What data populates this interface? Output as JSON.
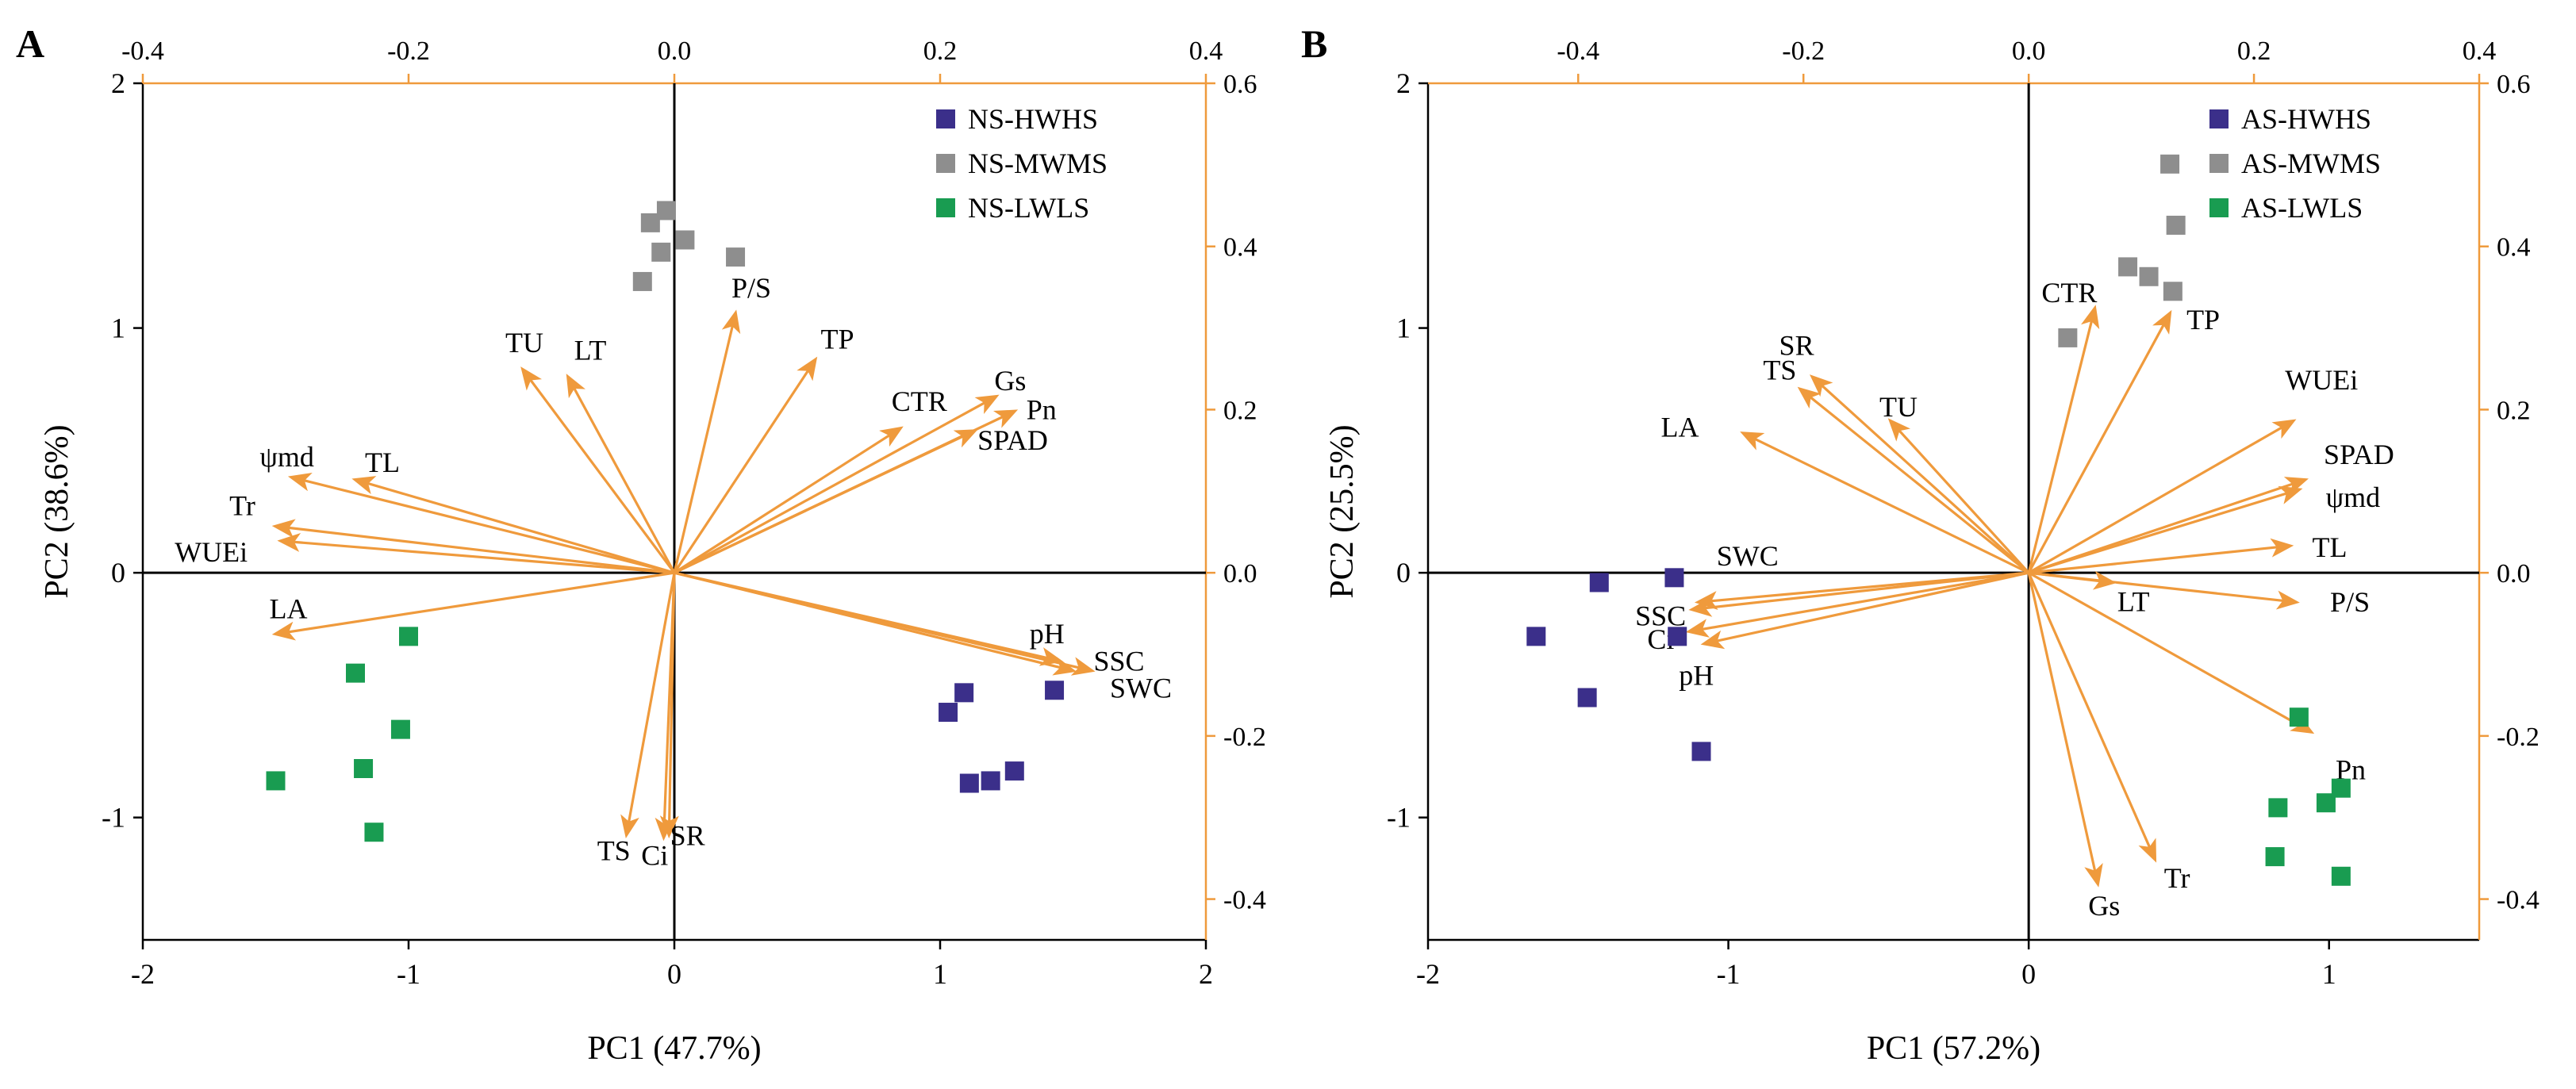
{
  "chart_data": [
    {
      "type": "biplot",
      "panel": "A",
      "xlabel": "PC1 (47.7%)",
      "ylabel": "PC2 (38.6%)",
      "xlim": [
        -2,
        2
      ],
      "ylim": [
        -1.5,
        2
      ],
      "x_ticks": [
        "-2",
        "-1",
        "0",
        "1",
        "2"
      ],
      "y_ticks": [
        "-1",
        "0",
        "1",
        "2"
      ],
      "top_ticks": [
        "-0.4",
        "-0.2",
        "0.0",
        "0.2",
        "0.4"
      ],
      "right_ticks": [
        "-0.4",
        "-0.2",
        "0.0",
        "0.2",
        "0.4",
        "0.6"
      ],
      "series": [
        {
          "name": "NS-HWHS",
          "color": "#3b2f8a",
          "points": [
            [
              1.03,
              -0.57
            ],
            [
              1.09,
              -0.49
            ],
            [
              1.11,
              -0.86
            ],
            [
              1.19,
              -0.85
            ],
            [
              1.28,
              -0.81
            ],
            [
              1.43,
              -0.48
            ]
          ]
        },
        {
          "name": "NS-MWMS",
          "color": "#8e8e8e",
          "points": [
            [
              -0.12,
              1.19
            ],
            [
              -0.09,
              1.43
            ],
            [
              -0.05,
              1.31
            ],
            [
              -0.03,
              1.48
            ],
            [
              0.04,
              1.36
            ],
            [
              0.23,
              1.29
            ]
          ]
        },
        {
          "name": "NS-LWLS",
          "color": "#199c51",
          "points": [
            [
              -1.5,
              -0.85
            ],
            [
              -1.2,
              -0.41
            ],
            [
              -1.17,
              -0.8
            ],
            [
              -1.13,
              -1.06
            ],
            [
              -1.03,
              -0.64
            ],
            [
              -1.0,
              -0.26
            ]
          ]
        }
      ],
      "arrow_color": "#ef9a3c",
      "vectors": [
        {
          "label": "P/S",
          "x": 0.23,
          "y": 1.06
        },
        {
          "label": "TP",
          "x": 0.53,
          "y": 0.87
        },
        {
          "label": "TU",
          "x": -0.57,
          "y": 0.83
        },
        {
          "label": "LT",
          "x": -0.4,
          "y": 0.8
        },
        {
          "label": "CTR",
          "x": 0.85,
          "y": 0.59
        },
        {
          "label": "Gs",
          "x": 1.21,
          "y": 0.72
        },
        {
          "label": "Pn",
          "x": 1.28,
          "y": 0.66
        },
        {
          "label": "SPAD",
          "x": 1.13,
          "y": 0.58
        },
        {
          "label": "ψmd",
          "x": -1.44,
          "y": 0.39
        },
        {
          "label": "TL",
          "x": -1.2,
          "y": 0.38
        },
        {
          "label": "Tr",
          "x": -1.5,
          "y": 0.19
        },
        {
          "label": "WUEi",
          "x": -1.48,
          "y": 0.13
        },
        {
          "label": "LA",
          "x": -1.5,
          "y": -0.25
        },
        {
          "label": "pH",
          "x": 1.45,
          "y": -0.36
        },
        {
          "label": "SSC",
          "x": 1.5,
          "y": -0.4
        },
        {
          "label": "SWC",
          "x": 1.57,
          "y": -0.4
        },
        {
          "label": "TS",
          "x": -0.18,
          "y": -1.07
        },
        {
          "label": "Ci",
          "x": -0.02,
          "y": -1.07
        },
        {
          "label": "SR",
          "x": -0.04,
          "y": -1.08
        }
      ]
    },
    {
      "type": "biplot",
      "panel": "B",
      "xlabel": "PC1 (57.2%)",
      "ylabel": "PC2 (25.5%)",
      "xlim": [
        -2,
        1.5
      ],
      "ylim": [
        -1.5,
        2
      ],
      "x_ticks": [
        "-2",
        "-1",
        "0",
        "1"
      ],
      "y_ticks": [
        "-1",
        "0",
        "1",
        "2"
      ],
      "top_ticks": [
        "-0.4",
        "-0.2",
        "0.0",
        "0.2",
        "0.4"
      ],
      "right_ticks": [
        "-0.4",
        "-0.2",
        "0.0",
        "0.2",
        "0.4",
        "0.6"
      ],
      "series": [
        {
          "name": "AS-HWHS",
          "color": "#3b2f8a",
          "points": [
            [
              -1.64,
              -0.26
            ],
            [
              -1.43,
              -0.04
            ],
            [
              -1.47,
              -0.51
            ],
            [
              -1.18,
              -0.02
            ],
            [
              -1.17,
              -0.26
            ],
            [
              -1.09,
              -0.73
            ]
          ]
        },
        {
          "name": "AS-MWMS",
          "color": "#8e8e8e",
          "points": [
            [
              0.13,
              0.96
            ],
            [
              0.33,
              1.25
            ],
            [
              0.4,
              1.21
            ],
            [
              0.48,
              1.15
            ],
            [
              0.49,
              1.42
            ],
            [
              0.47,
              1.67
            ]
          ]
        },
        {
          "name": "AS-LWLS",
          "color": "#199c51",
          "points": [
            [
              0.9,
              -0.59
            ],
            [
              0.83,
              -0.96
            ],
            [
              0.82,
              -1.16
            ],
            [
              0.99,
              -0.94
            ],
            [
              1.04,
              -0.88
            ],
            [
              1.04,
              -1.24
            ]
          ]
        }
      ],
      "arrow_color": "#ef9a3c",
      "vectors": [
        {
          "label": "CTR",
          "x": 0.22,
          "y": 1.08
        },
        {
          "label": "TP",
          "x": 0.47,
          "y": 1.06
        },
        {
          "label": "SR",
          "x": -0.72,
          "y": 0.8
        },
        {
          "label": "TS",
          "x": -0.76,
          "y": 0.75
        },
        {
          "label": "TU",
          "x": -0.46,
          "y": 0.62
        },
        {
          "label": "LA",
          "x": -0.95,
          "y": 0.57
        },
        {
          "label": "WUEi",
          "x": 0.88,
          "y": 0.62
        },
        {
          "label": "SPAD",
          "x": 0.92,
          "y": 0.38
        },
        {
          "label": "ψmd",
          "x": 0.9,
          "y": 0.34
        },
        {
          "label": "TL",
          "x": 0.87,
          "y": 0.11
        },
        {
          "label": "LT",
          "x": 0.28,
          "y": -0.04
        },
        {
          "label": "P/S",
          "x": 0.89,
          "y": -0.12
        },
        {
          "label": "SWC",
          "x": -1.1,
          "y": -0.12
        },
        {
          "label": "SSC",
          "x": -1.12,
          "y": -0.15
        },
        {
          "label": "Ci",
          "x": -1.13,
          "y": -0.24
        },
        {
          "label": "pH",
          "x": -1.08,
          "y": -0.29
        },
        {
          "label": "Pn",
          "x": 0.94,
          "y": -0.65
        },
        {
          "label": "Gs",
          "x": 0.23,
          "y": -1.27
        },
        {
          "label": "Tr",
          "x": 0.42,
          "y": -1.17
        }
      ]
    }
  ]
}
